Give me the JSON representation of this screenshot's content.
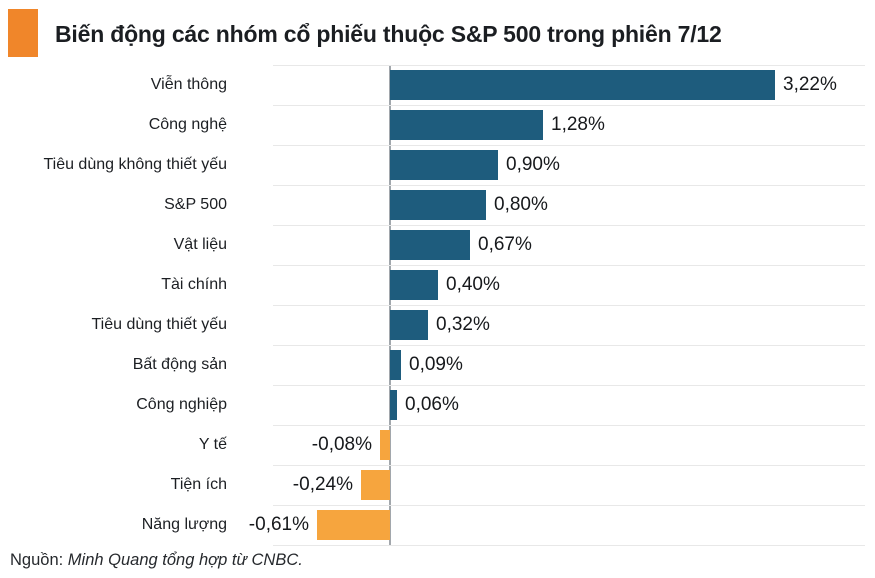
{
  "title": {
    "text": "Biến động các nhóm cổ phiếu thuộc S&P 500 trong phiên 7/12"
  },
  "source": {
    "prefix": "Nguồn: ",
    "text": "Minh Quang tổng hợp từ CNBC."
  },
  "colors": {
    "positive_bar": "#1e5c7d",
    "negative_bar": "#f6a53e",
    "accent_square": "#f0862a",
    "gridline": "#e8e8e8",
    "axis_line": "#a2a7ac",
    "text": "#1c1f23"
  },
  "chart_data": {
    "type": "bar",
    "orientation": "horizontal",
    "title": "Biến động các nhóm cổ phiếu thuộc S&P 500 trong phiên 7/12",
    "xlabel": "",
    "ylabel": "",
    "xlim": [
      -1,
      4.05
    ],
    "grid": true,
    "legend": false,
    "categories": [
      "Viễn thông",
      "Công nghệ",
      "Tiêu dùng không thiết yếu",
      "S&P 500",
      "Vật liệu",
      "Tài chính",
      "Tiêu dùng thiết yếu",
      "Bất động sản",
      "Công nghiệp",
      "Y tế",
      "Tiện ích",
      "Năng lượng"
    ],
    "values": [
      3.22,
      1.28,
      0.9,
      0.8,
      0.67,
      0.4,
      0.32,
      0.09,
      0.06,
      -0.08,
      -0.24,
      -0.61
    ],
    "value_labels": [
      "3,22%",
      "1,28%",
      "0,90%",
      "0,80%",
      "0,67%",
      "0,40%",
      "0,32%",
      "0,09%",
      "0,06%",
      "-0,08%",
      "-0,24%",
      "-0,61%"
    ]
  }
}
